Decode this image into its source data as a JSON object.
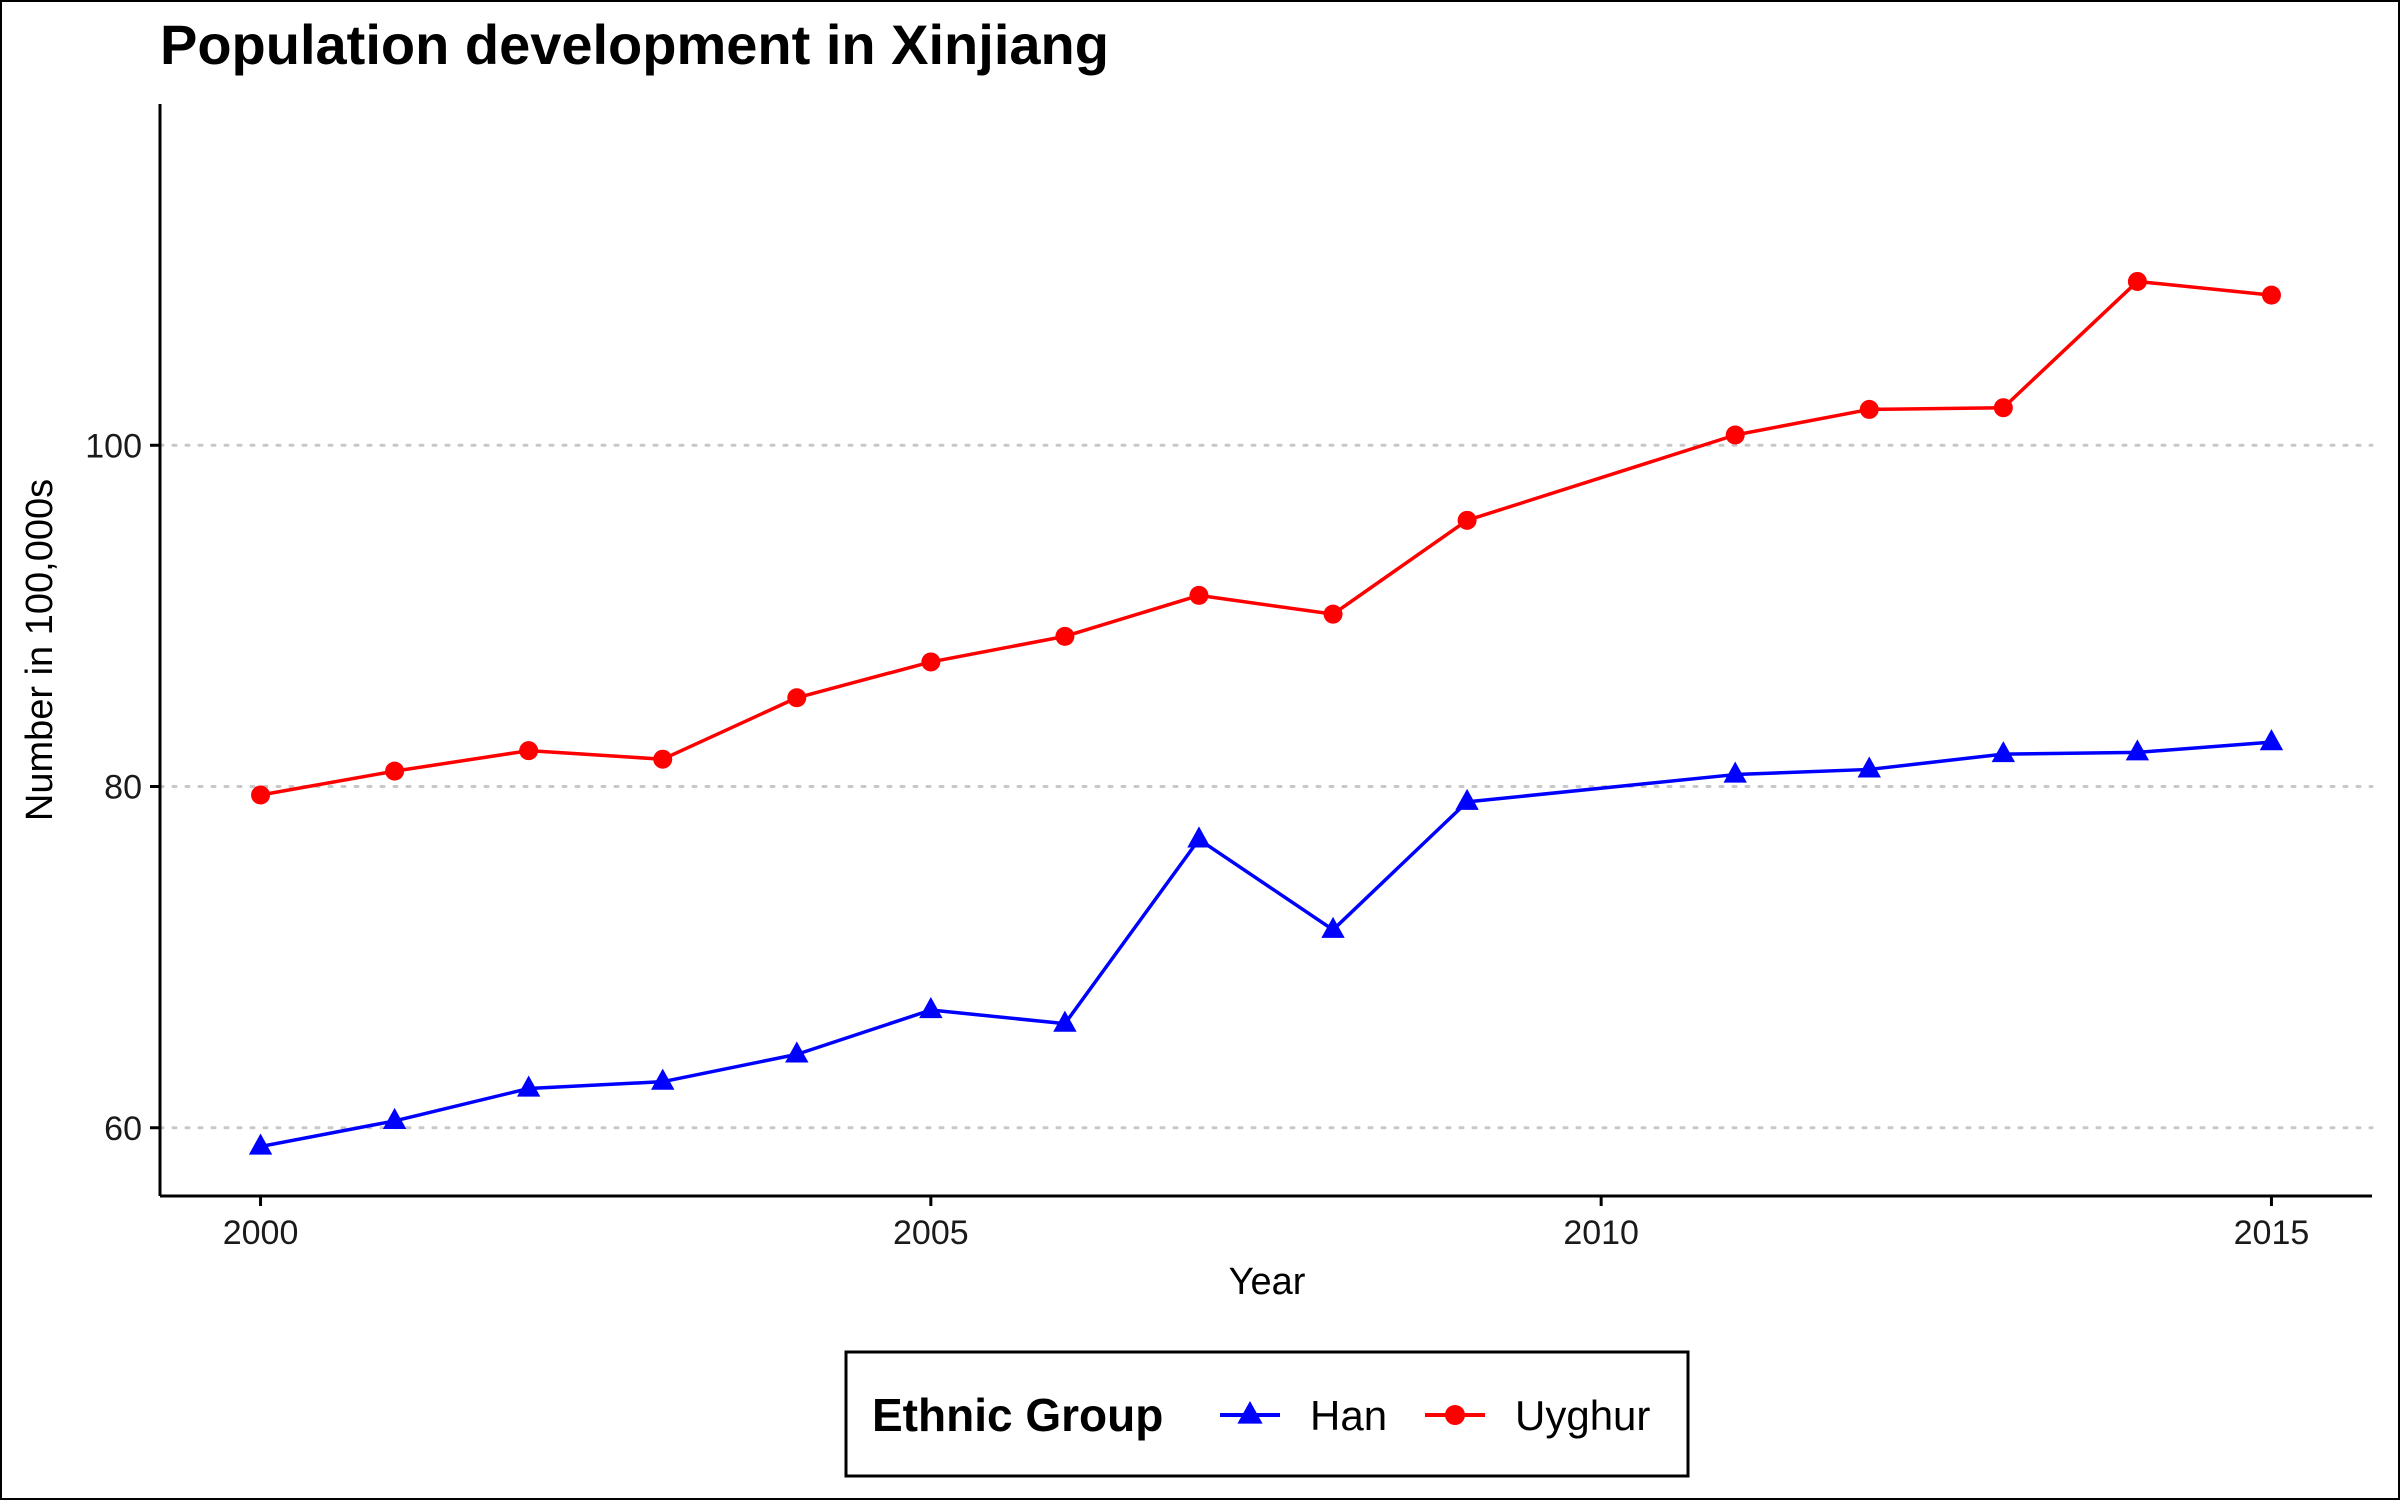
{
  "chart_data": {
    "type": "line",
    "title": "Population development in Xinjiang",
    "xlabel": "Year",
    "ylabel": "Number in 100,000s",
    "xlim": [
      1999.25,
      2015.75
    ],
    "ylim": [
      56,
      120
    ],
    "x_ticks": [
      2000,
      2005,
      2010,
      2015
    ],
    "y_ticks": [
      60,
      80,
      100
    ],
    "grid": "horizontal dotted major lines",
    "legend": {
      "title": "Ethnic Group",
      "placement": "bottom"
    },
    "series": [
      {
        "name": "Han",
        "color": "#0000ff",
        "marker": "triangle",
        "x": [
          2000,
          2001,
          2002,
          2003,
          2004,
          2005,
          2006,
          2007,
          2008,
          2009,
          2011,
          2012,
          2013,
          2014,
          2015
        ],
        "values": [
          58.9,
          60.4,
          62.3,
          62.7,
          64.3,
          66.9,
          66.1,
          76.9,
          71.6,
          79.1,
          80.7,
          81.0,
          81.9,
          82.0,
          82.6
        ]
      },
      {
        "name": "Uyghur",
        "color": "#ff0000",
        "marker": "circle",
        "x": [
          2000,
          2001,
          2002,
          2003,
          2004,
          2005,
          2006,
          2007,
          2008,
          2009,
          2011,
          2012,
          2013,
          2014,
          2015
        ],
        "values": [
          79.5,
          80.9,
          82.1,
          81.6,
          85.2,
          87.3,
          88.8,
          91.2,
          90.1,
          95.6,
          100.6,
          102.1,
          102.2,
          109.6,
          108.8
        ]
      }
    ]
  }
}
